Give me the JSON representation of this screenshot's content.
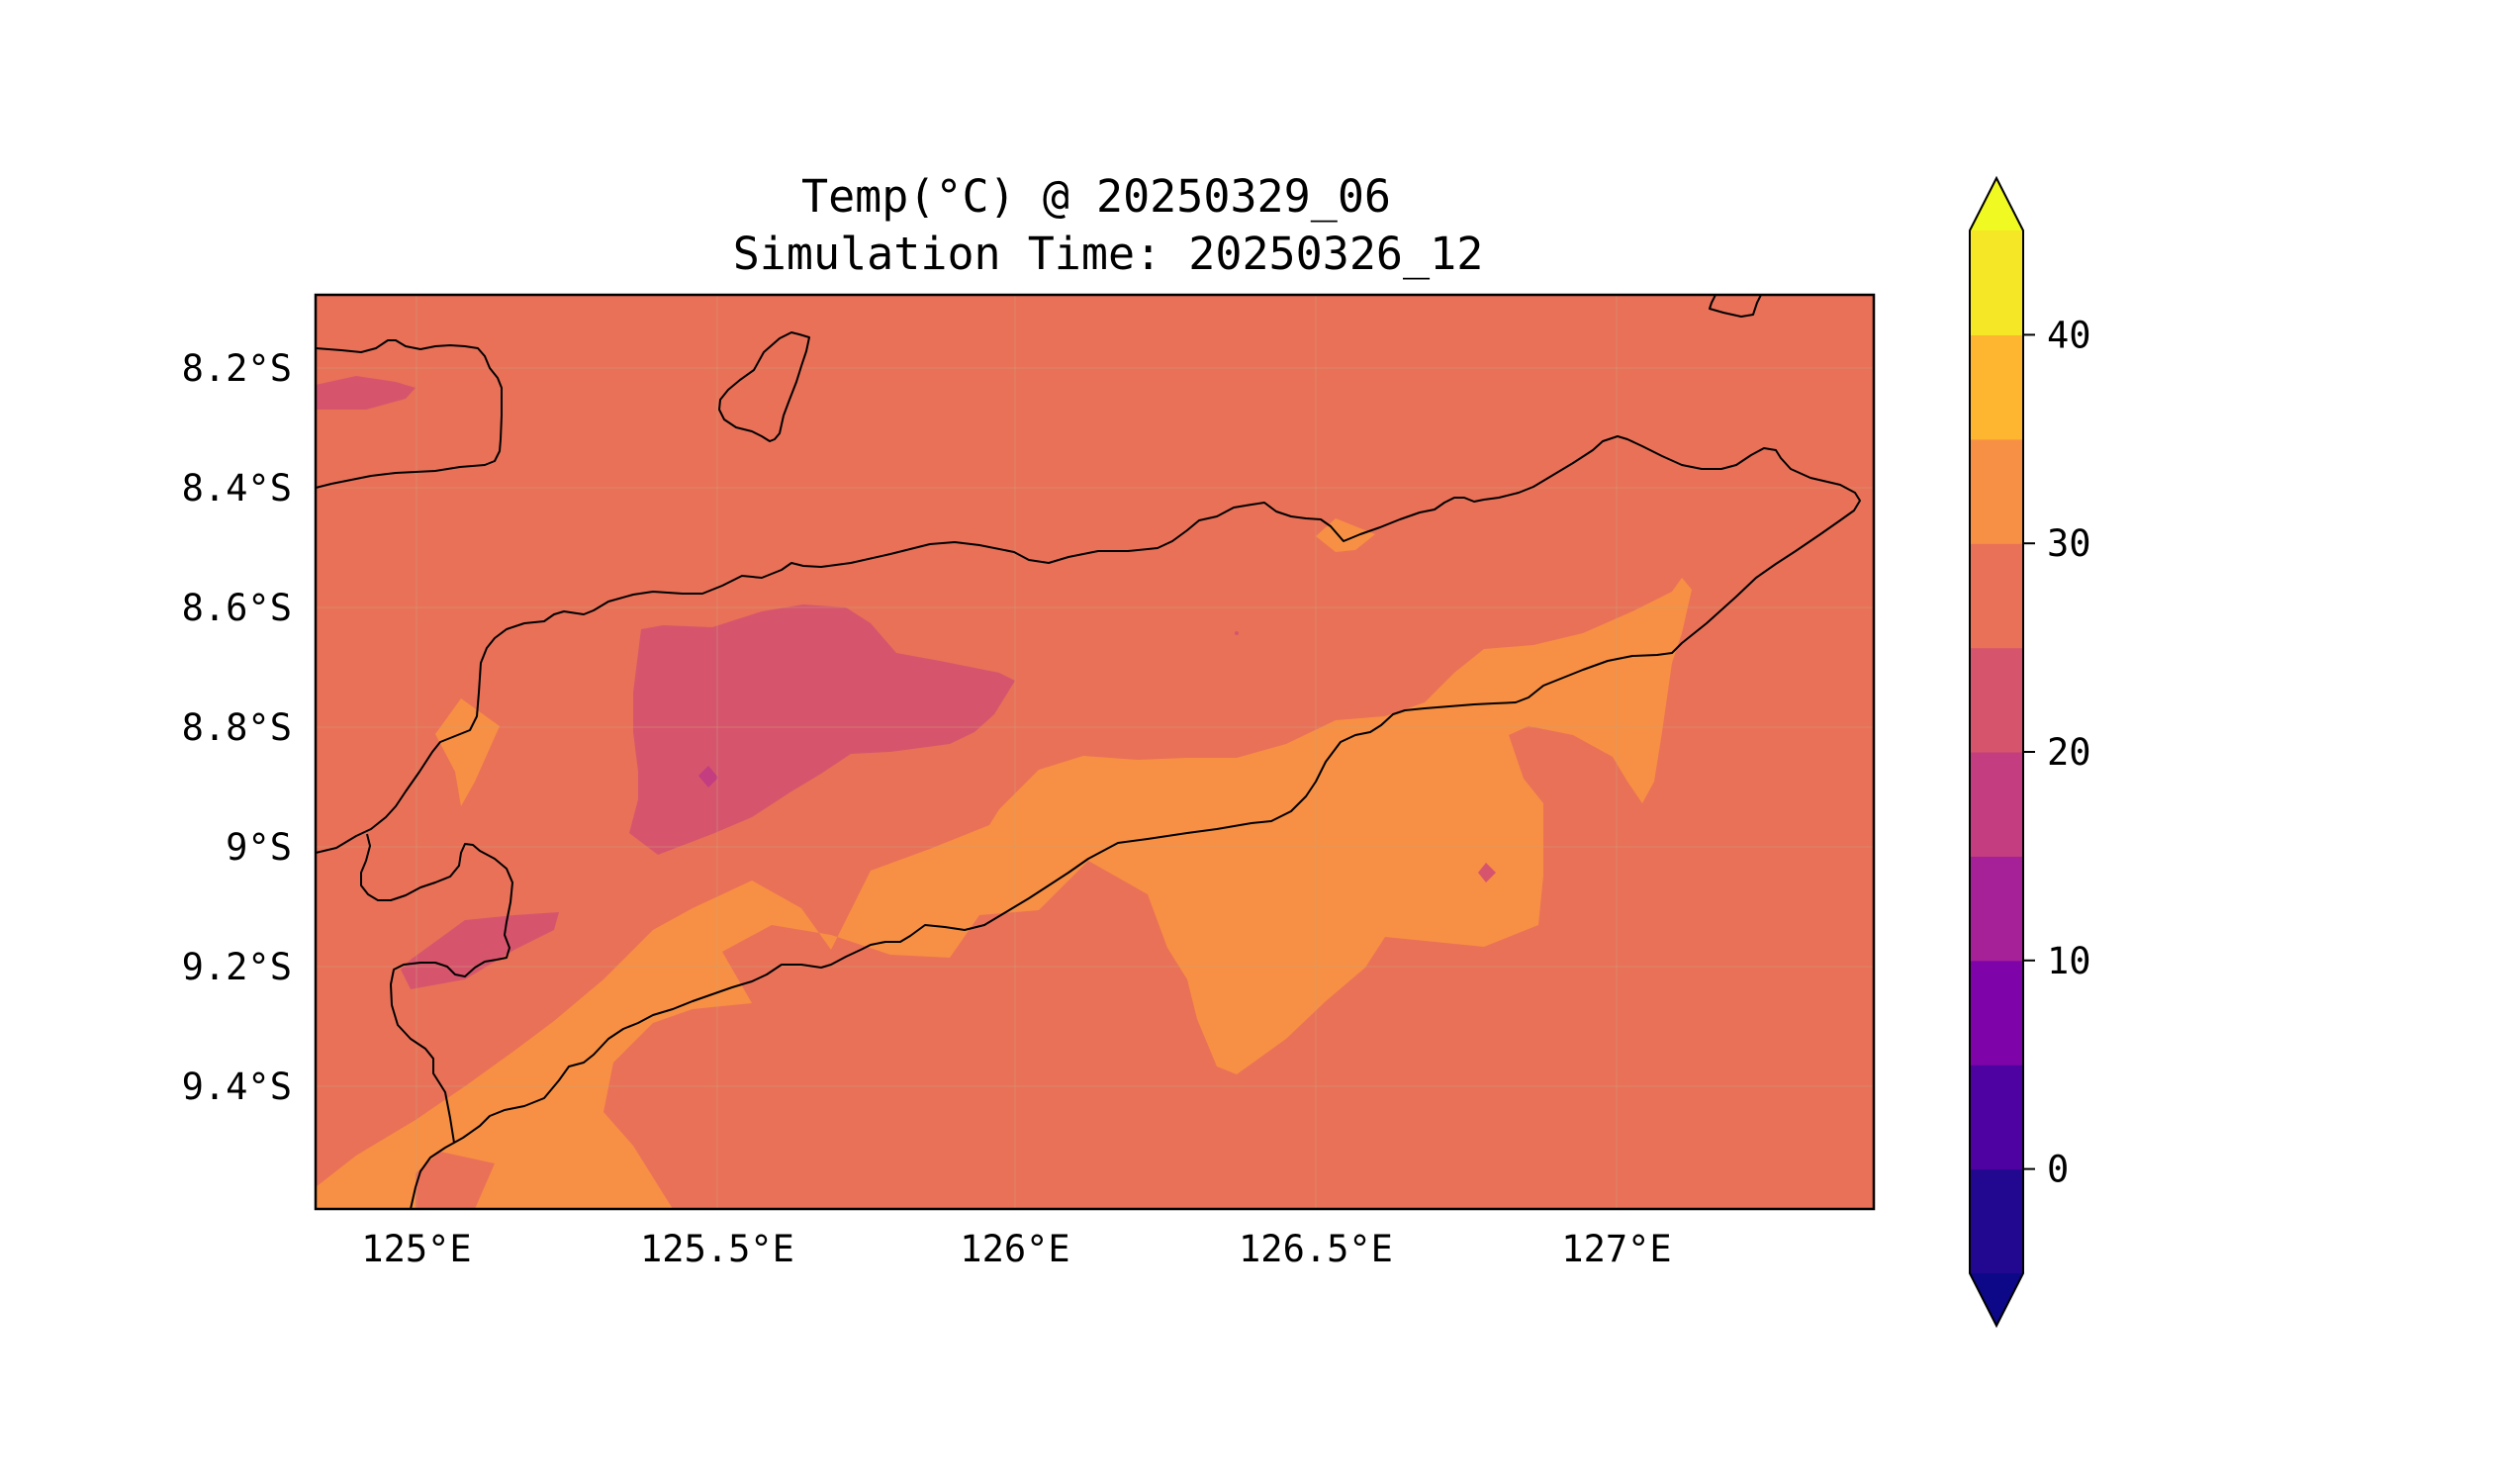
{
  "title": {
    "line1": "Temp(°C) @ 20250329_06",
    "line2": "Simulation Time: 20250326_12"
  },
  "map": {
    "lon_range": [
      124.83,
      127.42
    ],
    "lat_range": [
      -9.61,
      -8.09
    ],
    "lon_ticks": [
      {
        "value": 125.0,
        "label": "125°E"
      },
      {
        "value": 125.5,
        "label": "125.5°E"
      },
      {
        "value": 126.0,
        "label": "126°E"
      },
      {
        "value": 126.5,
        "label": "126.5°E"
      },
      {
        "value": 127.0,
        "label": "127°E"
      }
    ],
    "lat_ticks": [
      {
        "value": -8.2,
        "label": "8.2°S"
      },
      {
        "value": -8.4,
        "label": "8.4°S"
      },
      {
        "value": -8.6,
        "label": "8.6°S"
      },
      {
        "value": -8.8,
        "label": "8.8°S"
      },
      {
        "value": -9.0,
        "label": "9°S"
      },
      {
        "value": -9.2,
        "label": "9.2°S"
      },
      {
        "value": -9.4,
        "label": "9.4°S"
      }
    ],
    "gridlines": true,
    "coastlines": true
  },
  "colorbar": {
    "levels": [
      -5,
      0,
      5,
      10,
      15,
      20,
      25,
      30,
      35,
      40,
      45
    ],
    "colors": [
      "#220791",
      "#4e02a2",
      "#7e03a8",
      "#a62098",
      "#c33d80",
      "#d6556d",
      "#e97158",
      "#f79044",
      "#feb52f",
      "#f5e626"
    ],
    "under_color": "#0d0887",
    "over_color": "#f0f921",
    "extend": "both",
    "tick_labels": [
      {
        "value": 0,
        "label": "0"
      },
      {
        "value": 10,
        "label": "10"
      },
      {
        "value": 20,
        "label": "20"
      },
      {
        "value": 30,
        "label": "30"
      },
      {
        "value": 40,
        "label": "40"
      }
    ]
  },
  "chart_data": {
    "type": "heatmap",
    "title": "Temp(°C) @ 20250329_06\nSimulation Time: 20250326_12",
    "field": "Temperature (°C)",
    "background_band": "25-30",
    "regions": [
      {
        "band": "30-35",
        "description": "warm band along south coast of Timor"
      },
      {
        "band": "20-25",
        "description": "cooler highland patch near 125.5°E, 8.8°S"
      },
      {
        "band": "20-25",
        "description": "patch near 125.2°E, 9.2°S"
      },
      {
        "band": "20-25",
        "description": "patch near 124.9°E, 8.25°S"
      },
      {
        "band": "15-20",
        "description": "small spot near 125.5°E, 8.85°S"
      }
    ]
  }
}
